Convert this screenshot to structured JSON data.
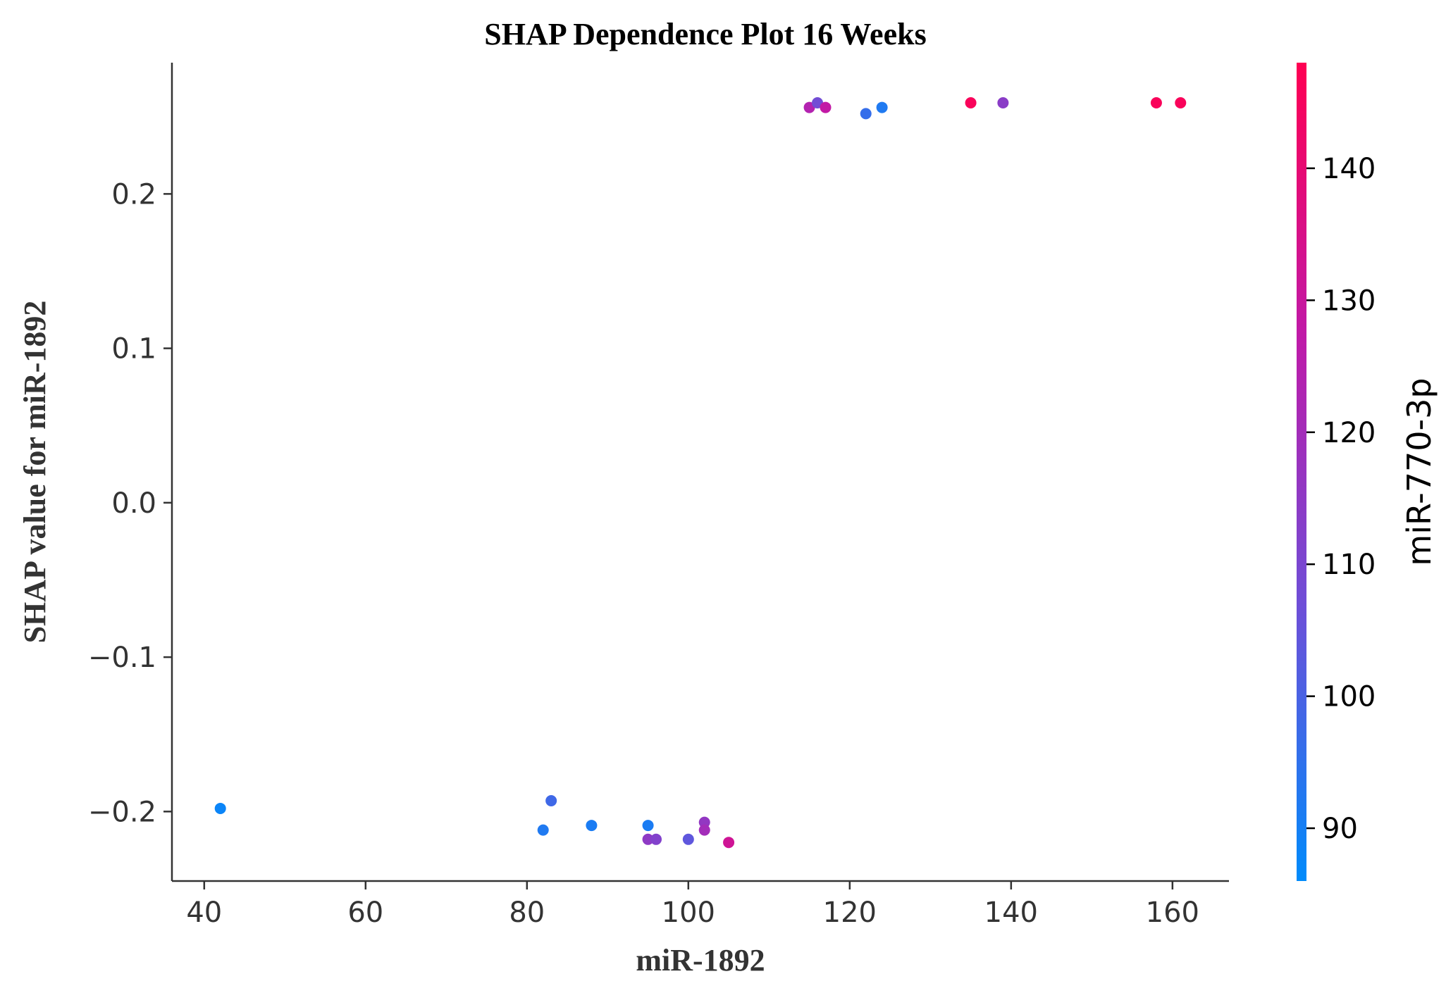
{
  "chart_data": {
    "type": "scatter",
    "title": "SHAP Dependence Plot 16 Weeks",
    "xlabel": "miR-1892",
    "ylabel": "SHAP value for miR-1892",
    "xlim": [
      36,
      167
    ],
    "ylim": [
      -0.245,
      0.285
    ],
    "xticks": [
      40,
      60,
      80,
      100,
      120,
      140,
      160
    ],
    "xtick_labels": [
      "40",
      "60",
      "80",
      "100",
      "120",
      "140",
      "160"
    ],
    "yticks": [
      0.2,
      0.1,
      0.0,
      -0.1,
      -0.2
    ],
    "ytick_labels": [
      "0.2",
      "0.1",
      "0.0",
      "−0.1",
      "−0.2"
    ],
    "grid": false,
    "colorbar": {
      "label": "miR-770-3p",
      "range": [
        86,
        148
      ],
      "ticks": [
        90,
        100,
        110,
        120,
        130,
        140
      ],
      "tick_labels": [
        "90",
        "100",
        "110",
        "120",
        "130",
        "140"
      ],
      "colors": [
        "#008bfb",
        "#6d4fd8",
        "#c01aa8",
        "#ff0052"
      ]
    },
    "points": [
      {
        "x": 42,
        "y": -0.198,
        "c": 88
      },
      {
        "x": 82,
        "y": -0.212,
        "c": 92
      },
      {
        "x": 83,
        "y": -0.193,
        "c": 98
      },
      {
        "x": 88,
        "y": -0.209,
        "c": 91
      },
      {
        "x": 95,
        "y": -0.209,
        "c": 91
      },
      {
        "x": 95,
        "y": -0.218,
        "c": 115
      },
      {
        "x": 96,
        "y": -0.218,
        "c": 112
      },
      {
        "x": 100,
        "y": -0.218,
        "c": 104
      },
      {
        "x": 102,
        "y": -0.207,
        "c": 116
      },
      {
        "x": 102,
        "y": -0.212,
        "c": 120
      },
      {
        "x": 105,
        "y": -0.22,
        "c": 132
      },
      {
        "x": 115,
        "y": 0.256,
        "c": 124
      },
      {
        "x": 116,
        "y": 0.259,
        "c": 108
      },
      {
        "x": 117,
        "y": 0.256,
        "c": 128
      },
      {
        "x": 122,
        "y": 0.252,
        "c": 96
      },
      {
        "x": 124,
        "y": 0.256,
        "c": 92
      },
      {
        "x": 135,
        "y": 0.259,
        "c": 146
      },
      {
        "x": 139,
        "y": 0.259,
        "c": 114
      },
      {
        "x": 158,
        "y": 0.259,
        "c": 146
      },
      {
        "x": 161,
        "y": 0.259,
        "c": 146
      }
    ]
  }
}
